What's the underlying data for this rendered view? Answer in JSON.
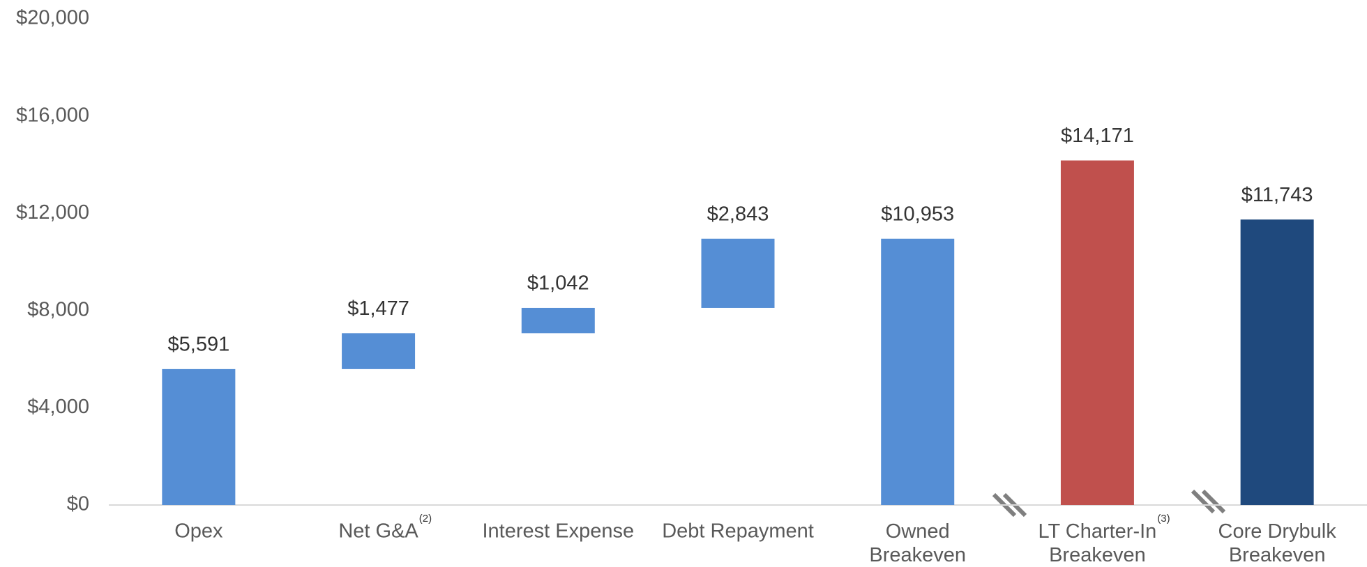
{
  "chart_data": {
    "type": "waterfall",
    "categories": [
      "Opex",
      "Net G&A",
      "Interest Expense",
      "Debt Repayment",
      "Owned\nBreakeven",
      "LT Charter-In\nBreakeven",
      "Core Drybulk\nBreakeven"
    ],
    "category_notes": [
      null,
      "(2)",
      null,
      null,
      null,
      "(3)",
      null
    ],
    "kinds": [
      "delta",
      "delta",
      "delta",
      "delta",
      "total",
      "total",
      "total"
    ],
    "values": [
      5591,
      1477,
      1042,
      2843,
      10953,
      14171,
      11743
    ],
    "value_labels": [
      "$5,591",
      "$1,477",
      "$1,042",
      "$2,843",
      "$10,953",
      "$14,171",
      "$11,743"
    ],
    "colors": [
      "#558ed5",
      "#558ed5",
      "#558ed5",
      "#558ed5",
      "#558ed5",
      "#c0504d",
      "#1f497d"
    ],
    "ylim": [
      0,
      20000
    ],
    "yticks": [
      {
        "value": 0,
        "label": "$0"
      },
      {
        "value": 4000,
        "label": "$4,000"
      },
      {
        "value": 8000,
        "label": "$8,000"
      },
      {
        "value": 12000,
        "label": "$12,000"
      },
      {
        "value": 16000,
        "label": "$16,000"
      },
      {
        "value": 20000,
        "label": "$20,000"
      }
    ],
    "grid": false
  }
}
